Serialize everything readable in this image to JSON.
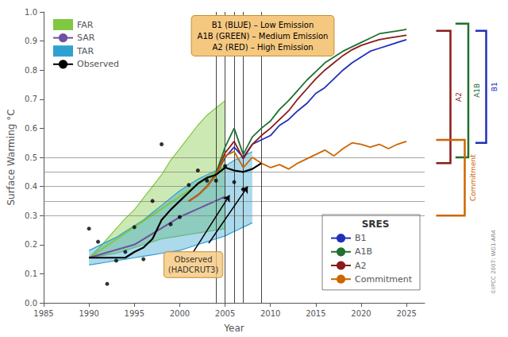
{
  "chart_data": {
    "type": "line",
    "x_label": "Year",
    "y_label": "Surface Warming °C",
    "xlim": [
      1985,
      2027
    ],
    "xticks": [
      1985,
      1990,
      1995,
      2000,
      2005,
      2010,
      2015,
      2020,
      2025
    ],
    "ylim": [
      0,
      1.0
    ],
    "yticks": [
      {
        "value": 0,
        "label": "0.0"
      },
      0.1,
      0.2,
      0.3,
      0.4,
      0.5,
      0.6,
      0.7,
      0.8,
      0.9,
      {
        "value": 1.0,
        "label": "1.0"
      }
    ],
    "grid": false,
    "legend": "upper left",
    "hlines": [
      0.3,
      0.35,
      0.4,
      0.45,
      0.5
    ],
    "vlines": [
      2004,
      2005,
      2006,
      2007,
      2009
    ],
    "series": [
      {
        "name": "FAR",
        "type": "band",
        "color": "#80c840",
        "x": [
          1990,
          1991,
          1992,
          1993,
          1994,
          1995,
          1996,
          1997,
          1998,
          1999,
          2000,
          2001,
          2002,
          2003,
          2004,
          2005
        ],
        "lower": [
          0.155,
          0.16,
          0.165,
          0.17,
          0.18,
          0.19,
          0.2,
          0.21,
          0.22,
          0.225,
          0.23,
          0.235,
          0.24,
          0.245,
          0.25,
          0.255
        ],
        "upper": [
          0.155,
          0.185,
          0.22,
          0.255,
          0.29,
          0.32,
          0.36,
          0.4,
          0.44,
          0.49,
          0.53,
          0.57,
          0.61,
          0.645,
          0.67,
          0.695
        ],
        "line_x": [
          1990,
          2005
        ],
        "line_values": [
          0.155,
          0.47
        ]
      },
      {
        "name": "SAR",
        "type": "line",
        "color": "#7050a0",
        "x": [
          1990,
          1995,
          2000,
          2005
        ],
        "values": [
          0.155,
          0.2,
          0.295,
          0.365
        ]
      },
      {
        "name": "TAR",
        "type": "band",
        "color": "#30a0d0",
        "x": [
          1990,
          1991,
          1992,
          1993,
          1994,
          1995,
          1996,
          1997,
          1998,
          1999,
          2000,
          2001,
          2002,
          2003,
          2004,
          2005,
          2006,
          2007,
          2008
        ],
        "lower": [
          0.13,
          0.135,
          0.14,
          0.145,
          0.15,
          0.155,
          0.16,
          0.165,
          0.17,
          0.175,
          0.18,
          0.19,
          0.2,
          0.21,
          0.22,
          0.23,
          0.245,
          0.26,
          0.275
        ],
        "upper": [
          0.18,
          0.195,
          0.21,
          0.225,
          0.245,
          0.265,
          0.285,
          0.31,
          0.335,
          0.36,
          0.385,
          0.405,
          0.425,
          0.44,
          0.455,
          0.47,
          0.49,
          0.505,
          0.52
        ]
      },
      {
        "name": "Observed",
        "type": "line",
        "color": "#000000",
        "x": [
          1990,
          1991,
          1992,
          1993,
          1994,
          1995,
          1996,
          1997,
          1998,
          1999,
          2000,
          2001,
          2002,
          2003,
          2004,
          2005,
          2006,
          2007,
          2008,
          2009
        ],
        "values": [
          0.155,
          0.155,
          0.155,
          0.155,
          0.155,
          0.175,
          0.19,
          0.22,
          0.285,
          0.32,
          0.35,
          0.38,
          0.41,
          0.43,
          0.44,
          0.465,
          0.455,
          0.45,
          0.46,
          0.48
        ],
        "dots_x": [
          1990,
          1991,
          1992,
          1993,
          1994,
          1995,
          1996,
          1997,
          1998,
          1999,
          2000,
          2001,
          2002,
          2003,
          2004,
          2005,
          2006,
          2007
        ],
        "dots_values": [
          0.255,
          0.21,
          0.065,
          0.145,
          0.175,
          0.26,
          0.15,
          0.35,
          0.545,
          0.27,
          0.295,
          0.405,
          0.455,
          0.42,
          0.42,
          0.47,
          0.415,
          0.39
        ]
      }
    ],
    "scenarios": {
      "title": "SRES",
      "legend": "lower right",
      "series": [
        {
          "name": "B1",
          "type": "line",
          "color": "#2030b8",
          "x": [
            2001,
            2002,
            2003,
            2004,
            2005,
            2006,
            2007,
            2008,
            2009,
            2010,
            2011,
            2012,
            2013,
            2014,
            2015,
            2016,
            2017,
            2018,
            2019,
            2020,
            2021,
            2022,
            2023,
            2024,
            2025
          ],
          "values": [
            0.35,
            0.37,
            0.4,
            0.44,
            0.5,
            0.535,
            0.5,
            0.545,
            0.56,
            0.575,
            0.61,
            0.63,
            0.66,
            0.685,
            0.72,
            0.74,
            0.77,
            0.8,
            0.825,
            0.845,
            0.865,
            0.875,
            0.885,
            0.895,
            0.905
          ]
        },
        {
          "name": "A1B",
          "type": "line",
          "color": "#207030",
          "x": [
            2001,
            2002,
            2003,
            2004,
            2005,
            2006,
            2007,
            2008,
            2009,
            2010,
            2011,
            2012,
            2013,
            2014,
            2015,
            2016,
            2017,
            2018,
            2019,
            2020,
            2021,
            2022,
            2023,
            2024,
            2025
          ],
          "values": [
            0.35,
            0.37,
            0.4,
            0.445,
            0.535,
            0.6,
            0.51,
            0.57,
            0.6,
            0.625,
            0.665,
            0.695,
            0.73,
            0.765,
            0.795,
            0.825,
            0.845,
            0.865,
            0.88,
            0.895,
            0.91,
            0.925,
            0.93,
            0.935,
            0.94
          ]
        },
        {
          "name": "A2",
          "type": "line",
          "color": "#8b1a1a",
          "x": [
            2001,
            2002,
            2003,
            2004,
            2005,
            2006,
            2007,
            2008,
            2009,
            2010,
            2011,
            2012,
            2013,
            2014,
            2015,
            2016,
            2017,
            2018,
            2019,
            2020,
            2021,
            2022,
            2023,
            2024,
            2025
          ],
          "values": [
            0.35,
            0.37,
            0.4,
            0.44,
            0.515,
            0.555,
            0.495,
            0.545,
            0.575,
            0.6,
            0.63,
            0.66,
            0.7,
            0.735,
            0.77,
            0.8,
            0.825,
            0.85,
            0.87,
            0.885,
            0.895,
            0.905,
            0.91,
            0.915,
            0.92
          ]
        },
        {
          "name": "Commitment",
          "type": "line",
          "color": "#cc6600",
          "x": [
            2001,
            2002,
            2003,
            2004,
            2005,
            2006,
            2007,
            2008,
            2009,
            2010,
            2011,
            2012,
            2013,
            2014,
            2015,
            2016,
            2017,
            2018,
            2019,
            2020,
            2021,
            2022,
            2023,
            2024,
            2025
          ],
          "values": [
            0.35,
            0.37,
            0.4,
            0.44,
            0.505,
            0.52,
            0.465,
            0.5,
            0.48,
            0.465,
            0.475,
            0.46,
            0.48,
            0.495,
            0.51,
            0.525,
            0.505,
            0.53,
            0.55,
            0.545,
            0.535,
            0.545,
            0.53,
            0.545,
            0.555
          ]
        }
      ]
    },
    "ranges": [
      {
        "name": "B1",
        "low": 0.55,
        "high": 0.935
      },
      {
        "name": "A1B",
        "low": 0.5,
        "high": 0.96
      },
      {
        "name": "A2",
        "low": 0.48,
        "high": 0.935
      },
      {
        "name": "Commitment",
        "low": 0.3,
        "high": 0.56
      }
    ],
    "annotations": [
      {
        "text": "B1 (BLUE) – Low Emission\nA1B (GREEN) – Medium Emission\nA2 (RED) – High Emission",
        "color": "#f5c880"
      },
      {
        "text": "Observed\n(HADCRUT3)",
        "color": "#f5c880",
        "x": 2001.5,
        "y": 0.175,
        "arrows": [
          {
            "from": [
              2001.5,
              0.175
            ],
            "to": [
              2005.5,
              0.37
            ]
          },
          {
            "from": [
              2003.2,
              0.205
            ],
            "to": [
              2007.5,
              0.4
            ]
          }
        ]
      }
    ],
    "source": "©IPCC 2007: WG1-AR4"
  }
}
